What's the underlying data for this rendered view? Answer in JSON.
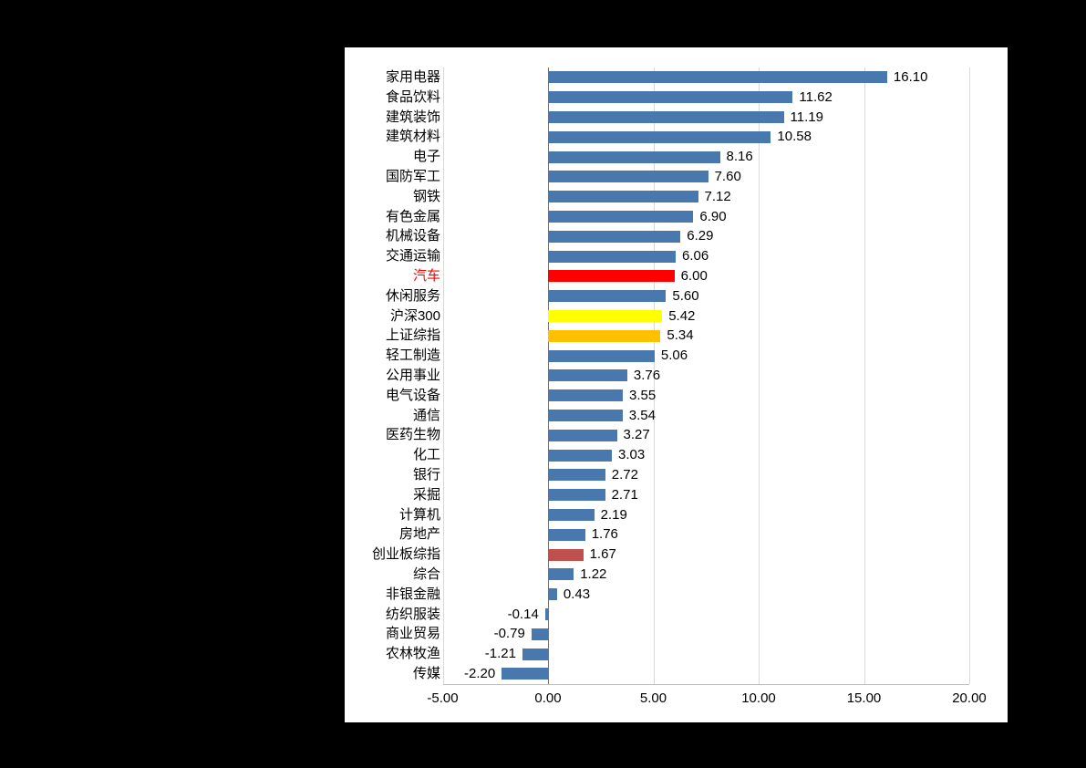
{
  "window": {
    "background_color": "#000000",
    "panel_background_color": "#FFFFFF"
  },
  "chart_data": {
    "type": "bar",
    "orientation": "horizontal",
    "title": "",
    "xlabel": "",
    "ylabel": "",
    "xlim": [
      -5,
      20
    ],
    "grid": true,
    "legend": false,
    "default_bar_color": "#4978AE",
    "zero_axis_color": "#737373",
    "gridline_color": "#D9D9D9",
    "x_axis": {
      "ticks": [
        {
          "label": "-5.00",
          "value": -5
        },
        {
          "label": "0.00",
          "value": 0
        },
        {
          "label": "5.00",
          "value": 5
        },
        {
          "label": "10.00",
          "value": 10
        },
        {
          "label": "15.00",
          "value": 15
        },
        {
          "label": "20.00",
          "value": 20
        }
      ]
    },
    "bars": [
      {
        "label": "家用电器",
        "value": 16.1,
        "display": "16.10"
      },
      {
        "label": "食品饮料",
        "value": 11.62,
        "display": "11.62"
      },
      {
        "label": "建筑装饰",
        "value": 11.19,
        "display": "11.19"
      },
      {
        "label": "建筑材料",
        "value": 10.58,
        "display": "10.58"
      },
      {
        "label": "电子",
        "value": 8.16,
        "display": "8.16"
      },
      {
        "label": "国防军工",
        "value": 7.6,
        "display": "7.60"
      },
      {
        "label": "钢铁",
        "value": 7.12,
        "display": "7.12"
      },
      {
        "label": "有色金属",
        "value": 6.9,
        "display": "6.90"
      },
      {
        "label": "机械设备",
        "value": 6.29,
        "display": "6.29"
      },
      {
        "label": "交通运输",
        "value": 6.06,
        "display": "6.06"
      },
      {
        "label": "汽车",
        "value": 6.0,
        "display": "6.00",
        "color": "#FF0000",
        "label_color": "#FF0000"
      },
      {
        "label": "休闲服务",
        "value": 5.6,
        "display": "5.60"
      },
      {
        "label": "沪深300",
        "value": 5.42,
        "display": "5.42",
        "color": "#FFFF00"
      },
      {
        "label": "上证综指",
        "value": 5.34,
        "display": "5.34",
        "color": "#FFC000"
      },
      {
        "label": "轻工制造",
        "value": 5.06,
        "display": "5.06"
      },
      {
        "label": "公用事业",
        "value": 3.76,
        "display": "3.76"
      },
      {
        "label": "电气设备",
        "value": 3.55,
        "display": "3.55"
      },
      {
        "label": "通信",
        "value": 3.54,
        "display": "3.54"
      },
      {
        "label": "医药生物",
        "value": 3.27,
        "display": "3.27"
      },
      {
        "label": "化工",
        "value": 3.03,
        "display": "3.03"
      },
      {
        "label": "银行",
        "value": 2.72,
        "display": "2.72"
      },
      {
        "label": "采掘",
        "value": 2.71,
        "display": "2.71"
      },
      {
        "label": "计算机",
        "value": 2.19,
        "display": "2.19"
      },
      {
        "label": "房地产",
        "value": 1.76,
        "display": "1.76"
      },
      {
        "label": "创业板综指",
        "value": 1.67,
        "display": "1.67",
        "color": "#C0504D"
      },
      {
        "label": "综合",
        "value": 1.22,
        "display": "1.22"
      },
      {
        "label": "非银金融",
        "value": 0.43,
        "display": "0.43"
      },
      {
        "label": "纺织服装",
        "value": -0.14,
        "display": "-0.14"
      },
      {
        "label": "商业贸易",
        "value": -0.79,
        "display": "-0.79"
      },
      {
        "label": "农林牧渔",
        "value": -1.21,
        "display": "-1.21"
      },
      {
        "label": "传媒",
        "value": -2.2,
        "display": "-2.20"
      }
    ]
  }
}
